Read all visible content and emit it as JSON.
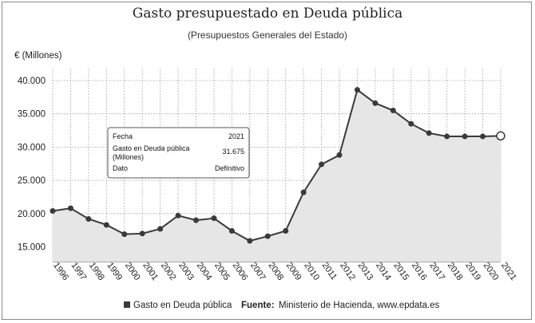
{
  "chart_data": {
    "type": "line",
    "title": "Gasto presupuestado en Deuda pública",
    "subtitle": "(Presupuestos Generales del Estado)",
    "ylabel": "€ (Millones)",
    "xlabel": "",
    "ylim": [
      13000,
      41500
    ],
    "yticks": [
      15000,
      20000,
      25000,
      30000,
      35000,
      40000
    ],
    "ytick_labels": [
      "15.000",
      "20.000",
      "25.000",
      "30.000",
      "35.000",
      "40.000"
    ],
    "categories": [
      "1996",
      "1997",
      "1998",
      "1999",
      "2000",
      "2001",
      "2002",
      "2003",
      "2004",
      "2005",
      "2006",
      "2007",
      "2008",
      "2009",
      "2010",
      "2011",
      "2012",
      "2013",
      "2014",
      "2015",
      "2016",
      "2017",
      "2018",
      "2019",
      "2020",
      "2021"
    ],
    "series": [
      {
        "name": "Gasto en Deuda pública",
        "values": [
          20400,
          20800,
          19200,
          18300,
          16900,
          17000,
          17700,
          19700,
          19000,
          19300,
          17400,
          15900,
          16600,
          17400,
          23200,
          27400,
          28800,
          38600,
          36600,
          35500,
          33500,
          32100,
          31600,
          31600,
          31600,
          31675
        ]
      }
    ],
    "grid": true,
    "tooltip": {
      "fecha_label": "Fecha",
      "fecha_value": "2021",
      "gasto_label_line1": "Gasto en Deuda pública",
      "gasto_label_line2": "(Millones)",
      "gasto_value": "31.675",
      "dato_label": "Dato",
      "dato_value": "Definitivo"
    },
    "legend": {
      "series_label": "Gasto en Deuda pública",
      "source_label": "Fuente:",
      "source_text": "Ministerio de Hacienda, www.epdata.es"
    }
  },
  "colors": {
    "line": "#3a3a3a",
    "marker": "#3a3a3a",
    "area": "#e6e6e6",
    "grid": "#9a9a9a",
    "highlight_marker_fill": "#ffffff"
  }
}
